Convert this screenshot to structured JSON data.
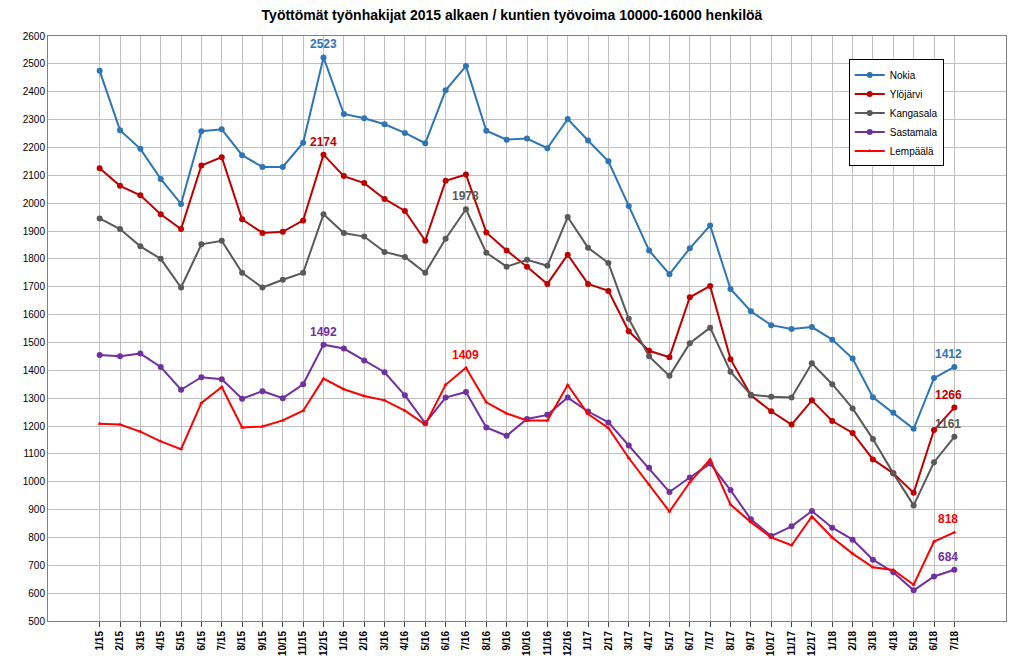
{
  "chart_data": {
    "type": "line",
    "title": "Työttömät työnhakijat 2015 alkaen / kuntien työvoima 10000-16000 henkilöä",
    "categories": [
      "1/15",
      "2/15",
      "3/15",
      "4/15",
      "5/15",
      "6/15",
      "7/15",
      "8/15",
      "9/15",
      "10/15",
      "11/15",
      "12/15",
      "1/16",
      "2/16",
      "3/16",
      "4/16",
      "5/16",
      "6/16",
      "7/16",
      "8/16",
      "9/16",
      "10/16",
      "11/16",
      "12/16",
      "1/17",
      "2/17",
      "3/17",
      "4/17",
      "5/17",
      "6/17",
      "7/17",
      "8/17",
      "9/17",
      "10/17",
      "11/17",
      "12/17",
      "1/18",
      "2/18",
      "3/18",
      "4/18",
      "5/18",
      "6/18",
      "7/18"
    ],
    "series": [
      {
        "name": "Nokia",
        "color": "#2e75b6",
        "marker": "circle",
        "values": [
          2475,
          2262,
          2195,
          2087,
          1997,
          2258,
          2265,
          2172,
          2130,
          2130,
          2217,
          2523,
          2320,
          2305,
          2283,
          2252,
          2215,
          2405,
          2492,
          2260,
          2228,
          2232,
          2197,
          2302,
          2225,
          2150,
          1990,
          1830,
          1745,
          1838,
          1920,
          1692,
          1612,
          1562,
          1548,
          1555,
          1510,
          1442,
          1303,
          1248,
          1190,
          1372,
          1412
        ]
      },
      {
        "name": "Ylöjärvi",
        "color": "#c00000",
        "marker": "circle",
        "values": [
          2125,
          2062,
          2028,
          1960,
          1907,
          2135,
          2165,
          1942,
          1893,
          1897,
          1938,
          2174,
          2097,
          2072,
          2015,
          1972,
          1865,
          2080,
          2103,
          1895,
          1830,
          1772,
          1710,
          1815,
          1710,
          1685,
          1540,
          1470,
          1447,
          1662,
          1703,
          1440,
          1310,
          1253,
          1205,
          1292,
          1218,
          1175,
          1080,
          1030,
          960,
          1186,
          1266
        ]
      },
      {
        "name": "Kangasala",
        "color": "#595959",
        "marker": "circle",
        "values": [
          1945,
          1907,
          1845,
          1800,
          1697,
          1852,
          1865,
          1750,
          1697,
          1725,
          1750,
          1960,
          1893,
          1880,
          1825,
          1807,
          1750,
          1872,
          1978,
          1822,
          1772,
          1797,
          1775,
          1950,
          1840,
          1785,
          1585,
          1450,
          1380,
          1497,
          1553,
          1395,
          1312,
          1305,
          1302,
          1425,
          1350,
          1263,
          1153,
          1030,
          915,
          1070,
          1161
        ]
      },
      {
        "name": "Sastamala",
        "color": "#7030a0",
        "marker": "circle",
        "values": [
          1455,
          1450,
          1460,
          1412,
          1330,
          1375,
          1368,
          1298,
          1325,
          1300,
          1350,
          1492,
          1478,
          1435,
          1393,
          1310,
          1210,
          1302,
          1322,
          1195,
          1165,
          1225,
          1240,
          1302,
          1252,
          1213,
          1130,
          1050,
          963,
          1015,
          1065,
          970,
          865,
          805,
          840,
          895,
          835,
          792,
          720,
          675,
          610,
          660,
          684
        ]
      },
      {
        "name": "Lempäälä",
        "color": "#ff0000",
        "marker": "triangle-up",
        "values": [
          1208,
          1205,
          1180,
          1145,
          1117,
          1283,
          1340,
          1195,
          1198,
          1220,
          1255,
          1370,
          1332,
          1308,
          1292,
          1255,
          1205,
          1348,
          1409,
          1285,
          1245,
          1220,
          1220,
          1347,
          1243,
          1193,
          1085,
          990,
          893,
          998,
          1080,
          918,
          855,
          800,
          772,
          875,
          800,
          742,
          693,
          683,
          630,
          785,
          818
        ]
      }
    ],
    "annotations": [
      {
        "series": "Nokia",
        "category": "12/15",
        "value": 2523
      },
      {
        "series": "Ylöjärvi",
        "category": "12/15",
        "value": 2174
      },
      {
        "series": "Kangasala",
        "category": "7/16",
        "value": 1978
      },
      {
        "series": "Sastamala",
        "category": "12/15",
        "value": 1492
      },
      {
        "series": "Lempäälä",
        "category": "7/16",
        "value": 1409
      },
      {
        "series": "Nokia",
        "category": "7/18",
        "value": 1412
      },
      {
        "series": "Ylöjärvi",
        "category": "7/18",
        "value": 1266
      },
      {
        "series": "Kangasala",
        "category": "7/18",
        "value": 1161
      },
      {
        "series": "Lempäälä",
        "category": "7/18",
        "value": 818
      },
      {
        "series": "Sastamala",
        "category": "7/18",
        "value": 684
      }
    ],
    "ylim": [
      500,
      2600
    ],
    "yticks": [
      500,
      600,
      700,
      800,
      900,
      1000,
      1100,
      1200,
      1300,
      1400,
      1500,
      1600,
      1700,
      1800,
      1900,
      2000,
      2100,
      2200,
      2300,
      2400,
      2500,
      2600
    ],
    "grid": true,
    "legend": "upper right"
  }
}
